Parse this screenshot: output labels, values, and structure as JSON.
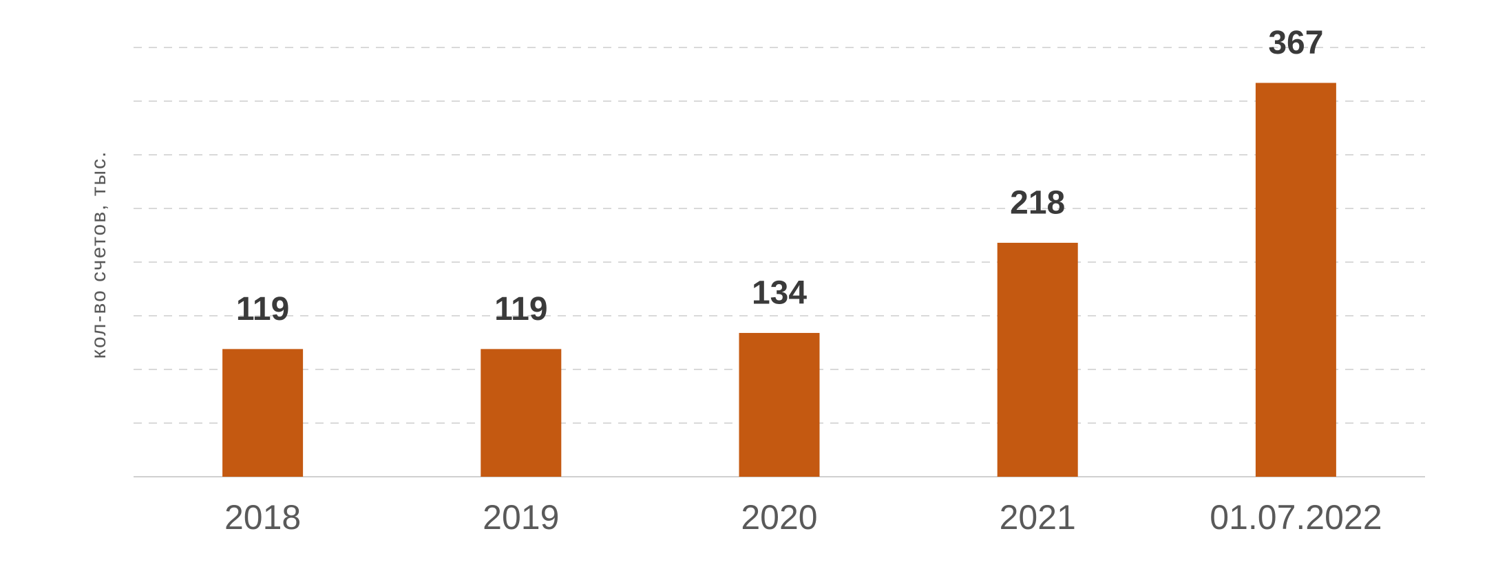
{
  "chart_data": {
    "type": "bar",
    "y_label": "кол-во счетов, тыс.",
    "categories": [
      "2018",
      "2019",
      "2020",
      "2021",
      "01.07.2022"
    ],
    "values": [
      119,
      119,
      134,
      218,
      367
    ],
    "color": "#c45911",
    "ylim": [
      0,
      400
    ],
    "yticks": [
      0,
      50,
      100,
      150,
      200,
      250,
      300,
      350,
      400
    ],
    "grid": true
  }
}
